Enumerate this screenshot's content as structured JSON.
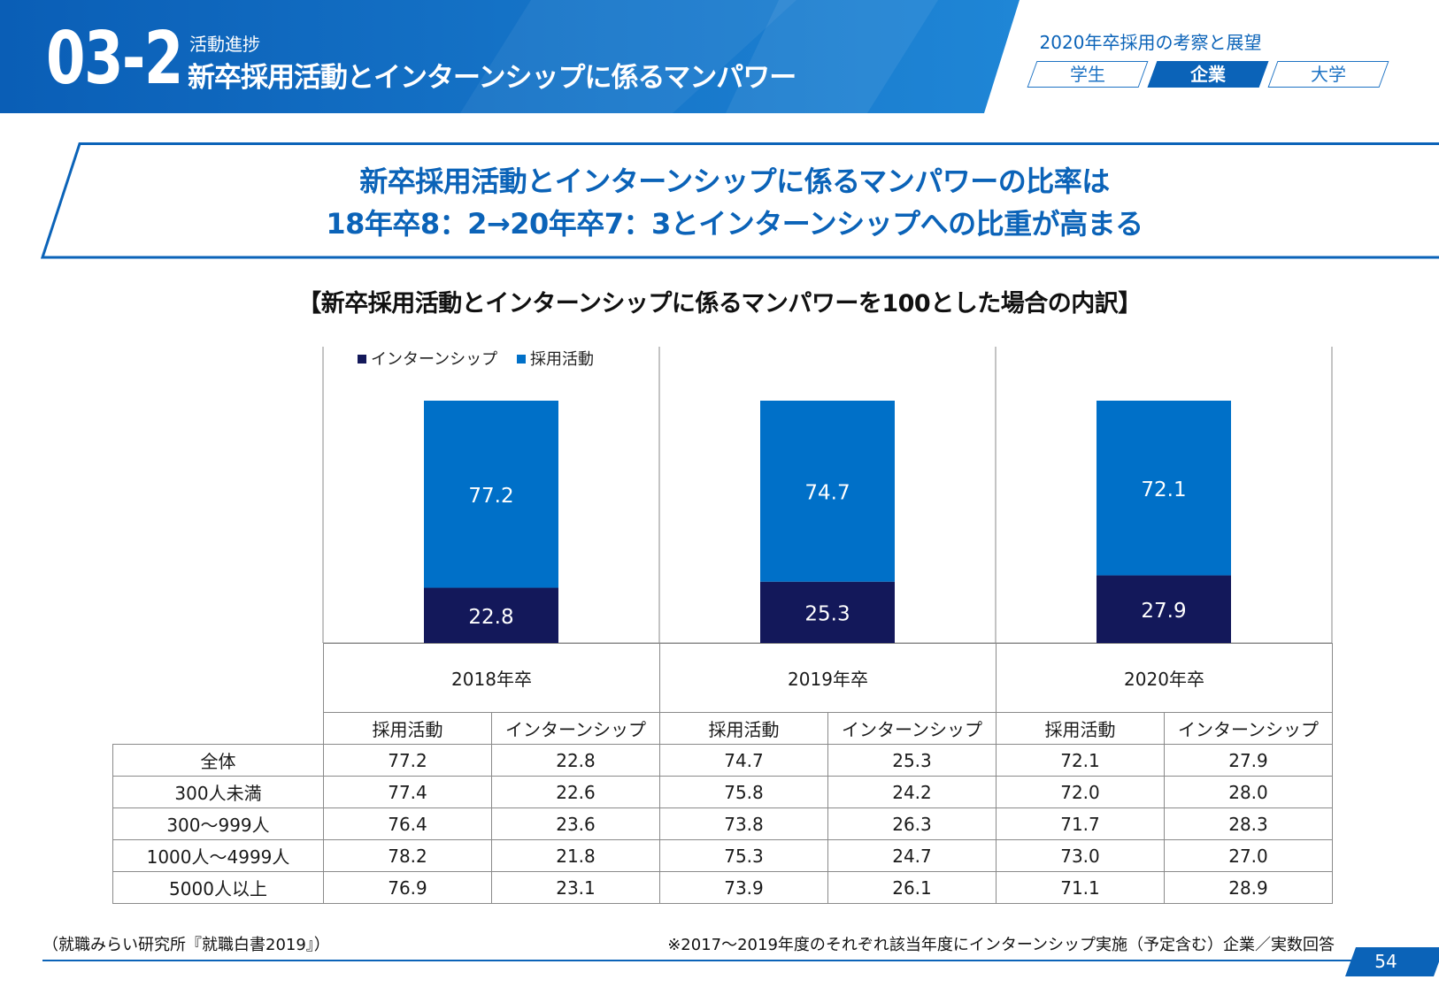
{
  "header": {
    "section_number": "03-2",
    "section_subtitle": "活動進捗",
    "section_title": "新卒採用活動とインターンシップに係るマンパワー",
    "series_title": "2020年卒採用の考察と展望",
    "tabs": [
      {
        "label": "学生",
        "active": false
      },
      {
        "label": "企業",
        "active": true
      },
      {
        "label": "大学",
        "active": false
      }
    ]
  },
  "headline": {
    "line1": "新卒採用活動とインターンシップに係るマンパワーの比率は",
    "line2": "18年卒8：2→20年卒7：3とインターンシップへの比重が高まる"
  },
  "colors": {
    "brand": "#0b63b8",
    "series_recruit": "#0070c8",
    "series_intern": "#13185a"
  },
  "chart_data": {
    "type": "bar",
    "stacked": true,
    "title": "【新卒採用活動とインターンシップに係るマンパワーを100とした場合の内訳】",
    "categories": [
      "2018年卒",
      "2019年卒",
      "2020年卒"
    ],
    "series": [
      {
        "name": "インターンシップ",
        "values": [
          22.8,
          25.3,
          27.9
        ]
      },
      {
        "name": "採用活動",
        "values": [
          77.2,
          74.7,
          72.1
        ]
      }
    ],
    "ylim": [
      0,
      100
    ],
    "legend_position": "top-left"
  },
  "table": {
    "col_headers": [
      "採用活動",
      "インターンシップ",
      "採用活動",
      "インターンシップ",
      "採用活動",
      "インターンシップ"
    ],
    "rows": [
      {
        "label": "全体",
        "values": [
          "77.2",
          "22.8",
          "74.7",
          "25.3",
          "72.1",
          "27.9"
        ]
      },
      {
        "label": "300人未満",
        "values": [
          "77.4",
          "22.6",
          "75.8",
          "24.2",
          "72.0",
          "28.0"
        ]
      },
      {
        "label": "300～999人",
        "values": [
          "76.4",
          "23.6",
          "73.8",
          "26.3",
          "71.7",
          "28.3"
        ]
      },
      {
        "label": "1000人～4999人",
        "values": [
          "78.2",
          "21.8",
          "75.3",
          "24.7",
          "73.0",
          "27.0"
        ]
      },
      {
        "label": "5000人以上",
        "values": [
          "76.9",
          "23.1",
          "73.9",
          "26.1",
          "71.1",
          "28.9"
        ]
      }
    ]
  },
  "footer": {
    "source": "（就職みらい研究所『就職白書2019』）",
    "note": "※2017～2019年度のそれぞれ該当年度にインターンシップ実施（予定含む）企業／実数回答",
    "page_number": "54"
  }
}
